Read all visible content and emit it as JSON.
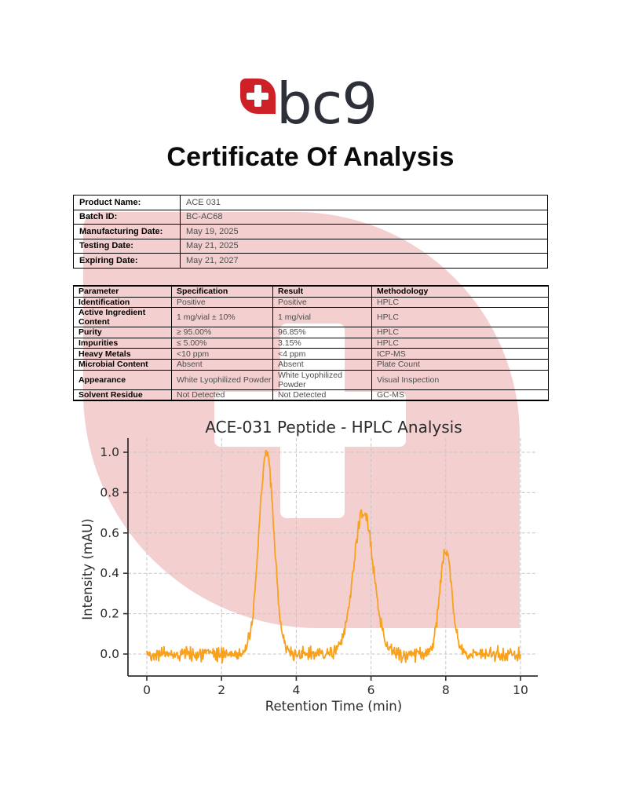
{
  "logo": {
    "text": "bc9",
    "brand_red": "#CE2127",
    "logo_text_color": "#2D3038",
    "watermark_pink": "rgba(205,35,42,0.22)",
    "cross_icon": "swiss-cross"
  },
  "heading": "Certificate Of Analysis",
  "info_table": {
    "rows": [
      {
        "label": "Product Name:",
        "value": "ACE 031"
      },
      {
        "label": "Batch ID:",
        "value": "BC-AC68"
      },
      {
        "label": "Manufacturing Date:",
        "value": "May 19, 2025"
      },
      {
        "label": "Testing Date:",
        "value": "May 21, 2025"
      },
      {
        "label": "Expiring Date:",
        "value": "May 21, 2027"
      }
    ]
  },
  "spec_table": {
    "headers": [
      "Parameter",
      "Specification",
      "Result",
      "Methodology"
    ],
    "rows": [
      [
        "Identification",
        "Positive",
        "Positive",
        "HPLC"
      ],
      [
        "Active Ingredient Content",
        "1 mg/vial ± 10%",
        "1 mg/vial",
        "HPLC"
      ],
      [
        "Purity",
        "≥ 95.00%",
        "96.85%",
        "HPLC"
      ],
      [
        "Impurities",
        "≤ 5.00%",
        "3.15%",
        "HPLC"
      ],
      [
        "Heavy Metals",
        "<10 ppm",
        "<4 ppm",
        "ICP-MS"
      ],
      [
        "Microbial Content",
        "Absent",
        "Absent",
        "Plate Count"
      ],
      [
        "Appearance",
        "White Lyophilized Powder",
        "White Lyophilized Powder",
        "Visual Inspection"
      ],
      [
        "Solvent Residue",
        "Not Detected",
        "Not Detected",
        "GC-MS"
      ]
    ]
  },
  "chart_data": {
    "type": "line",
    "title": "ACE-031 Peptide - HPLC Analysis",
    "xlabel": "Retention Time (min)",
    "ylabel": "Intensity (mAU)",
    "x_ticks": [
      0,
      2,
      4,
      6,
      8,
      10
    ],
    "y_ticks": [
      0.0,
      0.2,
      0.4,
      0.6,
      0.8,
      1.0
    ],
    "xlim": [
      0,
      10
    ],
    "ylim": [
      -0.11,
      1.07
    ],
    "grid": true,
    "grid_style": "dashed",
    "line_color": "#F9A11B",
    "baseline": 0.0,
    "noise_amplitude": 0.025,
    "peaks": [
      {
        "retention_time_min": 3.2,
        "height_mau": 1.0,
        "sigma_min": 0.2
      },
      {
        "retention_time_min": 5.8,
        "height_mau": 0.7,
        "sigma_min": 0.27
      },
      {
        "retention_time_min": 8.0,
        "height_mau": 0.51,
        "sigma_min": 0.165
      }
    ]
  }
}
